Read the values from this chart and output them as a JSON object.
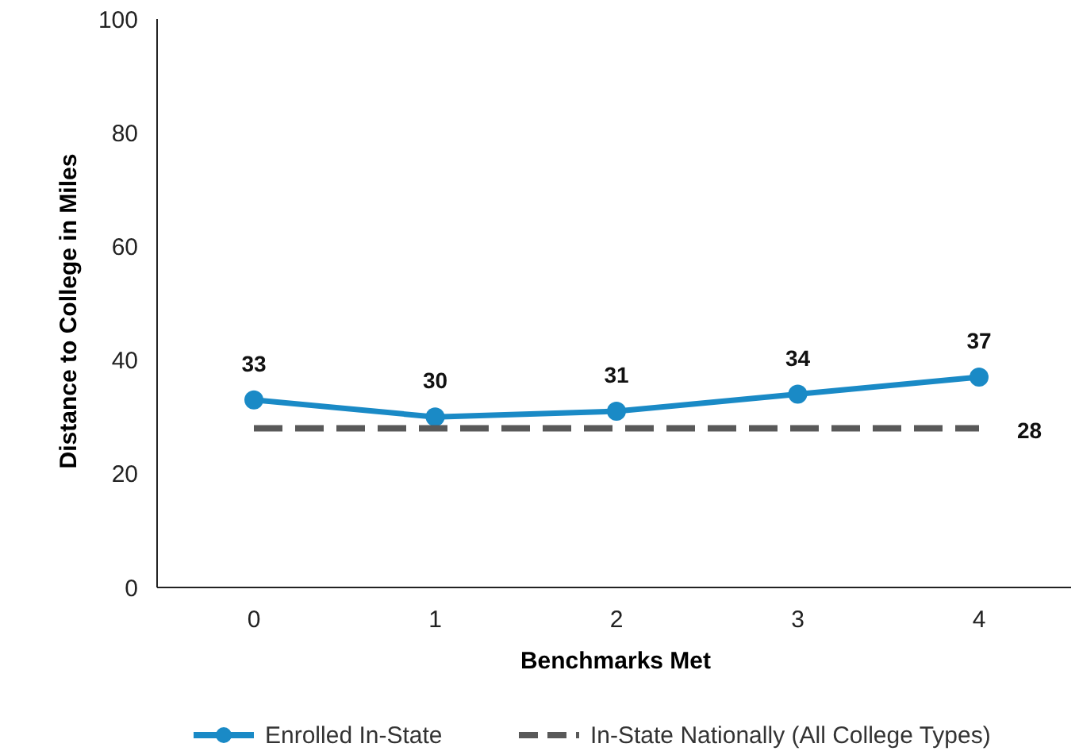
{
  "chart_data": {
    "type": "line",
    "xlabel": "Benchmarks Met",
    "ylabel": "Distance to College in Miles",
    "categories": [
      "0",
      "1",
      "2",
      "3",
      "4"
    ],
    "ylim": [
      0,
      100
    ],
    "yticks": [
      0,
      20,
      40,
      60,
      80,
      100
    ],
    "grid": false,
    "legend": "bottom",
    "series": [
      {
        "name": "Enrolled In-State",
        "color": "#1a8ac6",
        "values": [
          33,
          30,
          31,
          34,
          37
        ],
        "marker": "circle",
        "line_style": "solid",
        "value_labels": [
          "33",
          "30",
          "31",
          "34",
          "37"
        ]
      },
      {
        "name": "In-State Nationally (All College Types)",
        "color": "#595959",
        "values": [
          28,
          28,
          28,
          28,
          28
        ],
        "marker": "none",
        "line_style": "dashed",
        "value_labels": [
          null,
          null,
          null,
          null,
          "28"
        ]
      }
    ]
  }
}
